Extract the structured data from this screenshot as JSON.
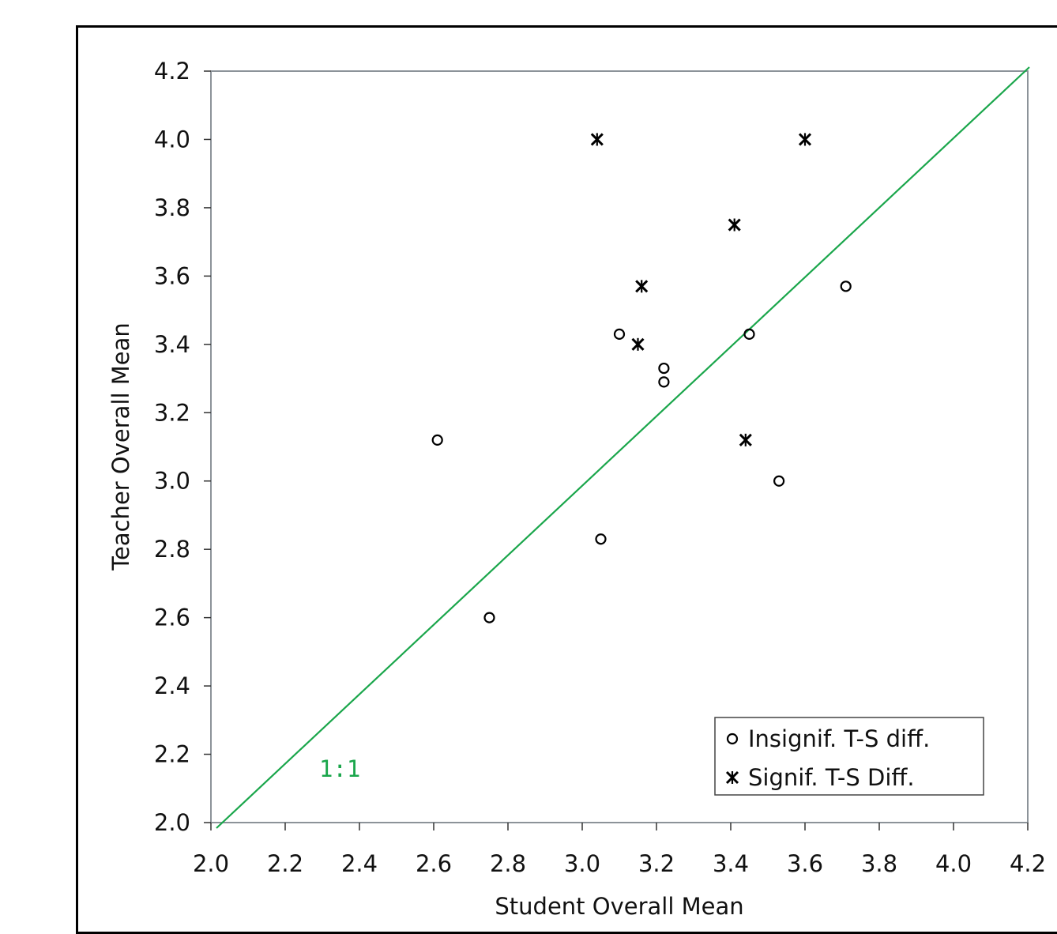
{
  "chart_data": {
    "type": "scatter",
    "xlabel": "Student Overall Mean",
    "ylabel": "Teacher Overall Mean",
    "xlim": [
      2.0,
      4.2
    ],
    "ylim": [
      2.0,
      4.2
    ],
    "xticks": [
      "2.0",
      "2.2",
      "2.4",
      "2.6",
      "2.8",
      "3.0",
      "3.2",
      "3.4",
      "3.6",
      "3.8",
      "4.0",
      "4.2"
    ],
    "yticks": [
      "2.0",
      "2.2",
      "2.4",
      "2.6",
      "2.8",
      "3.0",
      "3.2",
      "3.4",
      "3.6",
      "3.8",
      "4.0",
      "4.2"
    ],
    "grid": false,
    "legend_position": "bottom-right",
    "series": [
      {
        "name": "Insignif. T-S diff.",
        "marker": "circle",
        "points": [
          {
            "x": 2.61,
            "y": 3.12
          },
          {
            "x": 2.75,
            "y": 2.6
          },
          {
            "x": 3.05,
            "y": 2.83
          },
          {
            "x": 3.1,
            "y": 3.43
          },
          {
            "x": 3.22,
            "y": 3.33
          },
          {
            "x": 3.22,
            "y": 3.29
          },
          {
            "x": 3.45,
            "y": 3.43
          },
          {
            "x": 3.53,
            "y": 3.0
          },
          {
            "x": 3.71,
            "y": 3.57
          }
        ]
      },
      {
        "name": "Signif. T-S Diff.",
        "marker": "asterisk",
        "points": [
          {
            "x": 3.04,
            "y": 4.0
          },
          {
            "x": 3.6,
            "y": 4.0
          },
          {
            "x": 3.41,
            "y": 3.75
          },
          {
            "x": 3.16,
            "y": 3.57
          },
          {
            "x": 3.15,
            "y": 3.4
          },
          {
            "x": 3.44,
            "y": 3.12
          }
        ]
      }
    ],
    "reference_line": {
      "label": "1:1",
      "from": [
        2.0,
        2.0
      ],
      "to": [
        4.2,
        4.2
      ],
      "color": "#1aa64b"
    }
  }
}
